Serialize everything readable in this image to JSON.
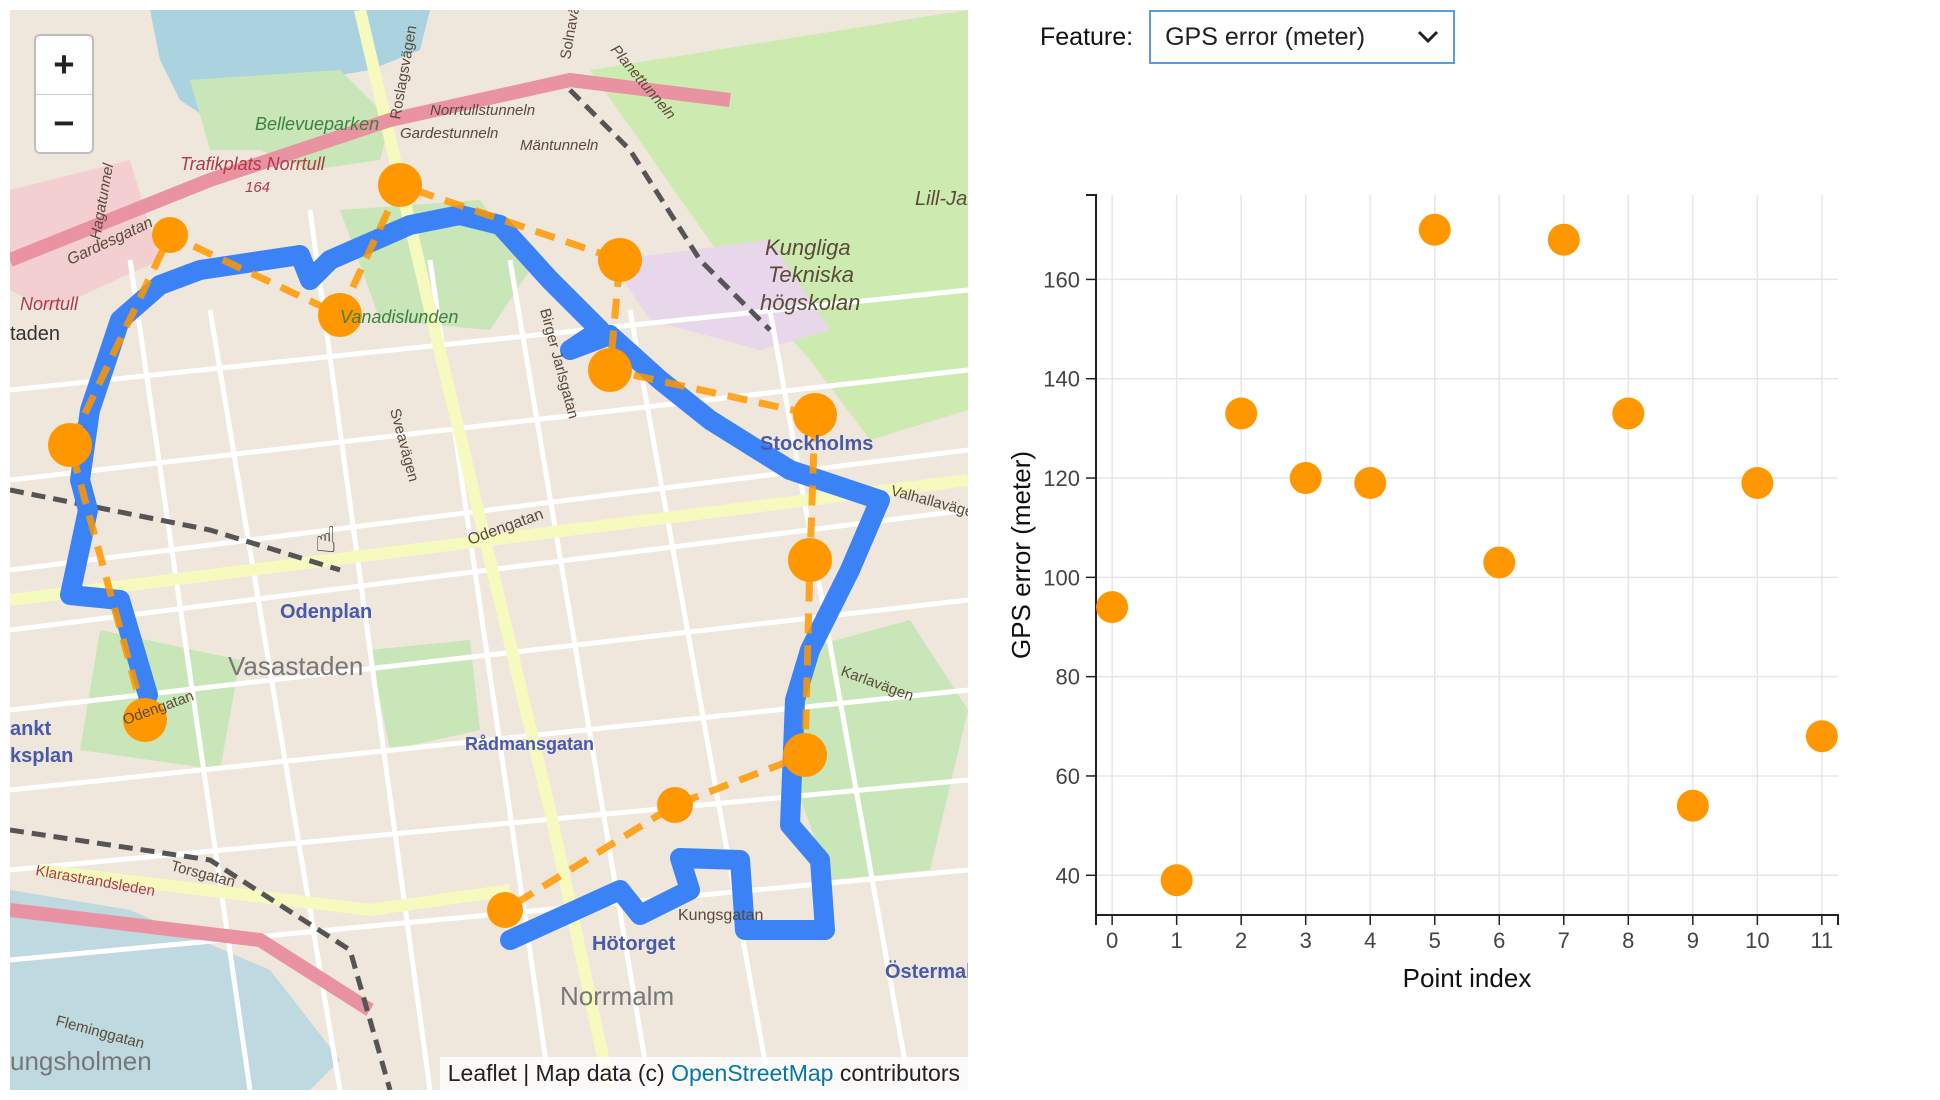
{
  "map": {
    "zoom_in_label": "+",
    "zoom_out_label": "−",
    "attribution": {
      "prefix": "Leaflet | Map data (c) ",
      "link": "OpenStreetMap",
      "suffix": " contributors"
    },
    "labels": [
      "Bellevueparken",
      "Norrtullstunneln",
      "Gardestunneln",
      "Mäntunneln",
      "Planettunneln",
      "Trafikplats Norrtull",
      "164",
      "Gardesgatan",
      "Hagatunnel",
      "Norrtull",
      "taden",
      "Kungliga",
      "Tekniska",
      "högskolan",
      "Lill-Jan",
      "Vanadislunden",
      "Birger Jarlsgatan",
      "Sveavägen",
      "Odengatan",
      "Odenplan",
      "Vasastaden",
      "Stockholms",
      "Valhallavägen",
      "Karlavägen",
      "Rådmansgatan",
      "Odengatan",
      "ankt",
      "ksplan",
      "Torsgatan",
      "Klarastrandsleden",
      "Hötorget",
      "Kungsgatan",
      "Norrmalm",
      "Östermal",
      "Fleminggatan",
      "ungsholmen",
      "Roslagsvägen",
      "Solnavägen"
    ],
    "colors": {
      "route": "#3b82f6",
      "markers": "#ff9800"
    }
  },
  "panel": {
    "feature_label": "Feature:",
    "feature_value": "GPS error (meter)"
  },
  "chart_data": {
    "type": "scatter",
    "xlabel": "Point index",
    "ylabel": "GPS error (meter)",
    "x": [
      0,
      1,
      2,
      3,
      4,
      5,
      6,
      7,
      8,
      9,
      10,
      11
    ],
    "y": [
      94,
      39,
      133,
      120,
      119,
      170,
      103,
      168,
      133,
      54,
      119,
      68
    ],
    "xticks": [
      0,
      1,
      2,
      3,
      4,
      5,
      6,
      7,
      8,
      9,
      10,
      11
    ],
    "yticks": [
      40,
      60,
      80,
      100,
      120,
      140,
      160
    ],
    "xlim": [
      -0.25,
      11.25
    ],
    "ylim": [
      32,
      177
    ],
    "grid": true,
    "color": "#ff9800"
  }
}
